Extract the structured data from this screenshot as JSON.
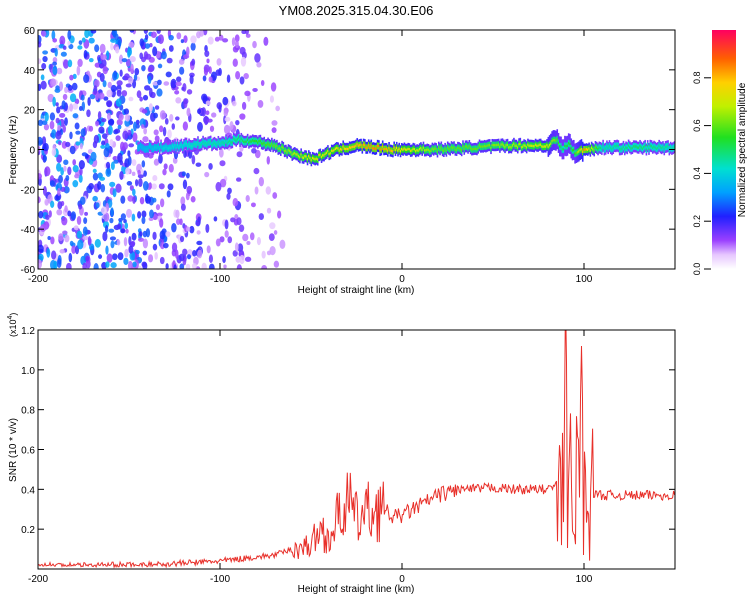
{
  "title": "YM08.2025.315.04.30.E06",
  "chart_data": [
    {
      "type": "heatmap",
      "xlabel": "Height of straight line (km)",
      "ylabel": "Frequency (Hz)",
      "xlim": [
        -200,
        150
      ],
      "ylim": [
        -60,
        60
      ],
      "xticks": [
        -200,
        -100,
        0,
        100
      ],
      "xtick_labels": [
        "-200",
        "-100",
        "0",
        "100"
      ],
      "yticks": [
        60,
        40,
        20,
        0,
        -20,
        -40,
        -60
      ],
      "ytick_labels": [
        "60",
        "40",
        "20",
        "0",
        "-20",
        "-40",
        "-60"
      ],
      "colorbar": {
        "label": "Normalized spectral amplitude",
        "range": [
          0.0,
          1.0
        ],
        "ticks": [
          0.0,
          0.2,
          0.4,
          0.6,
          0.8
        ],
        "tick_labels": [
          "0.0",
          "0.2",
          "0.4",
          "0.6",
          "0.8"
        ]
      },
      "ridge": {
        "x": [
          -145,
          -130,
          -120,
          -110,
          -100,
          -90,
          -80,
          -70,
          -60,
          -52,
          -48,
          -42,
          -35,
          -25,
          -15,
          -5,
          0,
          20,
          40,
          60,
          80,
          85,
          88,
          92,
          95,
          100,
          110,
          130,
          150
        ],
        "freq": [
          1,
          1,
          2,
          3,
          3,
          5,
          4,
          2,
          -2,
          -4,
          -5,
          -2,
          0,
          2,
          1,
          0,
          0,
          0,
          1,
          2,
          2,
          5,
          0,
          3,
          -2,
          0,
          1,
          1,
          1
        ],
        "amplitude": [
          0.35,
          0.4,
          0.42,
          0.45,
          0.45,
          0.5,
          0.55,
          0.6,
          0.65,
          0.7,
          0.72,
          0.7,
          0.75,
          0.8,
          0.85,
          0.8,
          0.75,
          0.6,
          0.6,
          0.65,
          0.7,
          0.6,
          0.5,
          0.55,
          0.55,
          0.85,
          0.45,
          0.5,
          0.45
        ]
      }
    },
    {
      "type": "line",
      "xlabel": "Height of straight line (km)",
      "ylabel": "SNR (10 * v/v)",
      "scale_label": "(x10",
      "scale_exp": "4",
      "xlim": [
        -200,
        150
      ],
      "ylim": [
        0,
        1.2
      ],
      "xticks": [
        -200,
        -100,
        0,
        100
      ],
      "xtick_labels": [
        "-200",
        "-100",
        "0",
        "100"
      ],
      "yticks": [
        0.2,
        0.4,
        0.6,
        0.8,
        1.0,
        1.2
      ],
      "ytick_labels": [
        "0.2",
        "0.4",
        "0.6",
        "0.8",
        "1.0",
        "1.2"
      ],
      "series": [
        {
          "name": "SNR",
          "color": "#e8302a",
          "x": [
            -200,
            -180,
            -160,
            -140,
            -120,
            -100,
            -90,
            -80,
            -70,
            -60,
            -50,
            -45,
            -40,
            -35,
            -30,
            -25,
            -20,
            -15,
            -10,
            -5,
            0,
            10,
            20,
            30,
            40,
            50,
            60,
            70,
            80,
            85,
            88,
            90,
            92,
            94,
            96,
            98,
            100,
            102,
            105,
            110,
            120,
            130,
            140,
            150
          ],
          "y": [
            0.02,
            0.02,
            0.02,
            0.02,
            0.03,
            0.04,
            0.05,
            0.06,
            0.07,
            0.1,
            0.12,
            0.2,
            0.15,
            0.26,
            0.35,
            0.25,
            0.28,
            0.3,
            0.3,
            0.26,
            0.27,
            0.32,
            0.37,
            0.4,
            0.4,
            0.41,
            0.4,
            0.4,
            0.4,
            0.42,
            0.3,
            1.0,
            0.55,
            0.12,
            0.45,
            0.9,
            0.35,
            0.38,
            0.38,
            0.37,
            0.37,
            0.37,
            0.37,
            0.37
          ]
        }
      ]
    }
  ]
}
